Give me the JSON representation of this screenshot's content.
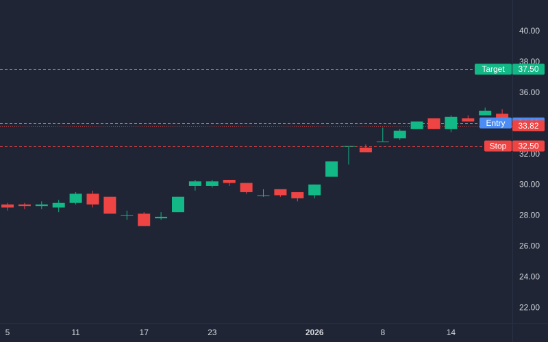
{
  "chart_data": {
    "type": "candlestick",
    "ylim": [
      21,
      42
    ],
    "y_ticks": [
      "22.00",
      "24.00",
      "26.00",
      "28.00",
      "30.00",
      "32.00",
      "34.00",
      "36.00",
      "38.00",
      "40.00"
    ],
    "y_tick_values": [
      22,
      24,
      26,
      28,
      30,
      32,
      34,
      36,
      38,
      40
    ],
    "x_ticks": [
      {
        "label": "5",
        "index": 0,
        "bold": false
      },
      {
        "label": "11",
        "index": 4,
        "bold": false
      },
      {
        "label": "17",
        "index": 8,
        "bold": false
      },
      {
        "label": "23",
        "index": 12,
        "bold": false
      },
      {
        "label": "2026",
        "index": 18,
        "bold": true
      },
      {
        "label": "8",
        "index": 22,
        "bold": false
      },
      {
        "label": "14",
        "index": 26,
        "bold": false
      }
    ],
    "candles": [
      {
        "o": 28.7,
        "h": 28.8,
        "l": 28.3,
        "c": 28.5
      },
      {
        "o": 28.7,
        "h": 28.8,
        "l": 28.4,
        "c": 28.6
      },
      {
        "o": 28.6,
        "h": 28.9,
        "l": 28.4,
        "c": 28.7
      },
      {
        "o": 28.5,
        "h": 29.0,
        "l": 28.2,
        "c": 28.8
      },
      {
        "o": 28.8,
        "h": 29.5,
        "l": 28.7,
        "c": 29.4
      },
      {
        "o": 29.4,
        "h": 29.6,
        "l": 28.5,
        "c": 28.7
      },
      {
        "o": 29.2,
        "h": 29.2,
        "l": 28.1,
        "c": 28.1
      },
      {
        "o": 28.0,
        "h": 28.3,
        "l": 27.7,
        "c": 28.0
      },
      {
        "o": 28.1,
        "h": 28.2,
        "l": 27.3,
        "c": 27.3
      },
      {
        "o": 27.8,
        "h": 28.2,
        "l": 27.7,
        "c": 27.9
      },
      {
        "o": 28.2,
        "h": 29.2,
        "l": 28.2,
        "c": 29.2
      },
      {
        "o": 29.9,
        "h": 30.3,
        "l": 29.6,
        "c": 30.2
      },
      {
        "o": 29.9,
        "h": 30.3,
        "l": 29.8,
        "c": 30.2
      },
      {
        "o": 30.3,
        "h": 30.3,
        "l": 29.9,
        "c": 30.1
      },
      {
        "o": 30.1,
        "h": 30.1,
        "l": 29.4,
        "c": 29.5
      },
      {
        "o": 29.3,
        "h": 29.7,
        "l": 29.2,
        "c": 29.3
      },
      {
        "o": 29.7,
        "h": 29.7,
        "l": 29.2,
        "c": 29.3
      },
      {
        "o": 29.5,
        "h": 29.5,
        "l": 28.9,
        "c": 29.1
      },
      {
        "o": 29.3,
        "h": 30.0,
        "l": 29.1,
        "c": 30.0
      },
      {
        "o": 30.5,
        "h": 31.5,
        "l": 30.5,
        "c": 31.5
      },
      {
        "o": 32.5,
        "h": 32.5,
        "l": 31.3,
        "c": 32.5
      },
      {
        "o": 32.4,
        "h": 32.6,
        "l": 32.1,
        "c": 32.1
      },
      {
        "o": 32.8,
        "h": 33.7,
        "l": 32.8,
        "c": 32.8
      },
      {
        "o": 33.0,
        "h": 33.6,
        "l": 32.9,
        "c": 33.5
      },
      {
        "o": 33.6,
        "h": 34.0,
        "l": 33.6,
        "c": 34.1
      },
      {
        "o": 34.3,
        "h": 34.3,
        "l": 33.6,
        "c": 33.6
      },
      {
        "o": 33.6,
        "h": 34.5,
        "l": 33.4,
        "c": 34.4
      },
      {
        "o": 34.3,
        "h": 34.5,
        "l": 34.1,
        "c": 34.1
      },
      {
        "o": 34.5,
        "h": 35.0,
        "l": 34.5,
        "c": 34.8
      },
      {
        "o": 34.6,
        "h": 34.9,
        "l": 33.7,
        "c": 33.82
      }
    ],
    "lines": [
      {
        "id": "target",
        "label": "Target",
        "value": 37.5,
        "value_text": "37.50",
        "color": "#12b886",
        "dash": "dashed"
      },
      {
        "id": "entry",
        "label": "Entry",
        "value": 34.0,
        "value_text": "34.00",
        "color": "#4b8cf5",
        "dash": "dashed"
      },
      {
        "id": "last",
        "label": "",
        "value": 33.82,
        "value_text": "33.82",
        "color": "#ef4444",
        "dash": "dotted"
      },
      {
        "id": "stop",
        "label": "Stop",
        "value": 32.5,
        "value_text": "32.50",
        "color": "#ef4444",
        "dash": "dashed"
      }
    ]
  },
  "colors": {
    "background": "#1f2535",
    "up": "#12b886",
    "down": "#ef4444",
    "text": "#d4d7de",
    "axis_border": "#2a3144"
  }
}
